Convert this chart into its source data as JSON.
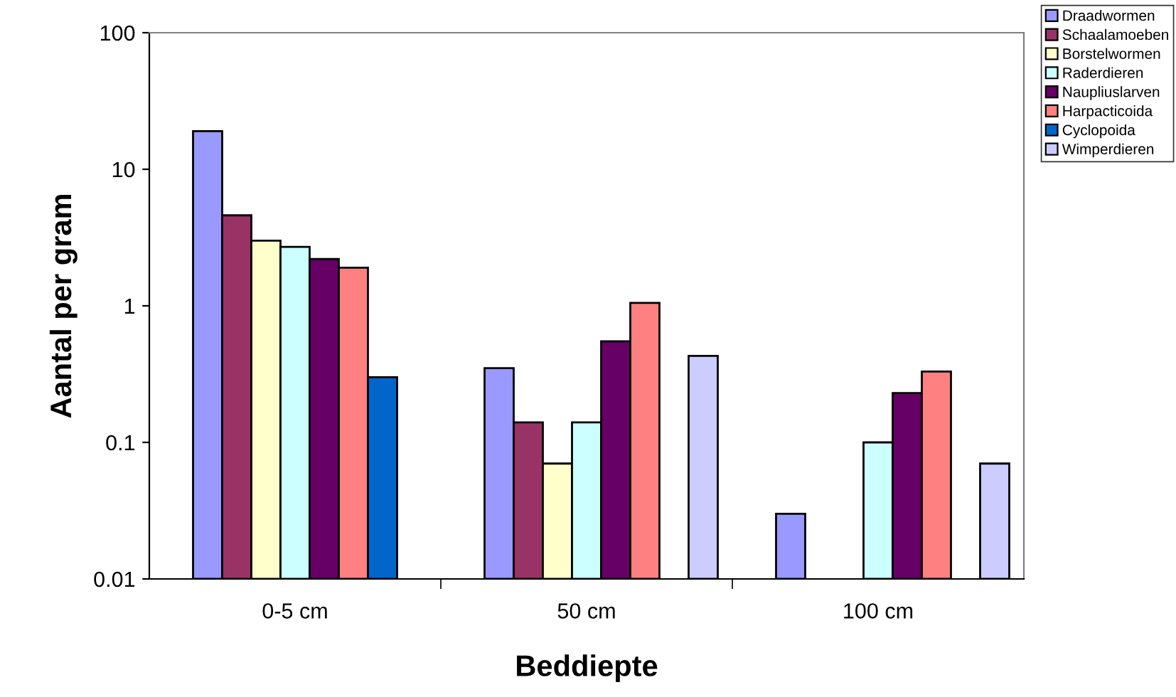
{
  "chart_data": {
    "type": "bar",
    "xlabel": "Beddiepte",
    "ylabel": "Aantal per gram",
    "categories": [
      "0-5 cm",
      "50 cm",
      "100 cm"
    ],
    "series": [
      {
        "name": "Draadwormen",
        "color": "#9999ff",
        "values": [
          19,
          0.35,
          0.03
        ]
      },
      {
        "name": "Schaalamoeben",
        "color": "#993366",
        "values": [
          4.6,
          0.14,
          null
        ]
      },
      {
        "name": "Borstelwormen",
        "color": "#ffffcc",
        "values": [
          3,
          0.07,
          null
        ]
      },
      {
        "name": "Raderdieren",
        "color": "#ccffff",
        "values": [
          2.7,
          0.14,
          0.1
        ]
      },
      {
        "name": "Naupliuslarven",
        "color": "#660066",
        "values": [
          2.2,
          0.55,
          0.23
        ]
      },
      {
        "name": "Harpacticoida",
        "color": "#ff8080",
        "values": [
          1.9,
          1.05,
          0.33
        ]
      },
      {
        "name": "Cyclopoida",
        "color": "#0066cc",
        "values": [
          0.3,
          null,
          null
        ]
      },
      {
        "name": "Wimperdieren",
        "color": "#ccccff",
        "values": [
          null,
          0.43,
          0.07
        ]
      }
    ],
    "log": "y",
    "ylim": [
      0.01,
      100
    ],
    "yticks": [
      0.01,
      0.1,
      1,
      10,
      100
    ],
    "grid": false,
    "legend": "right"
  }
}
